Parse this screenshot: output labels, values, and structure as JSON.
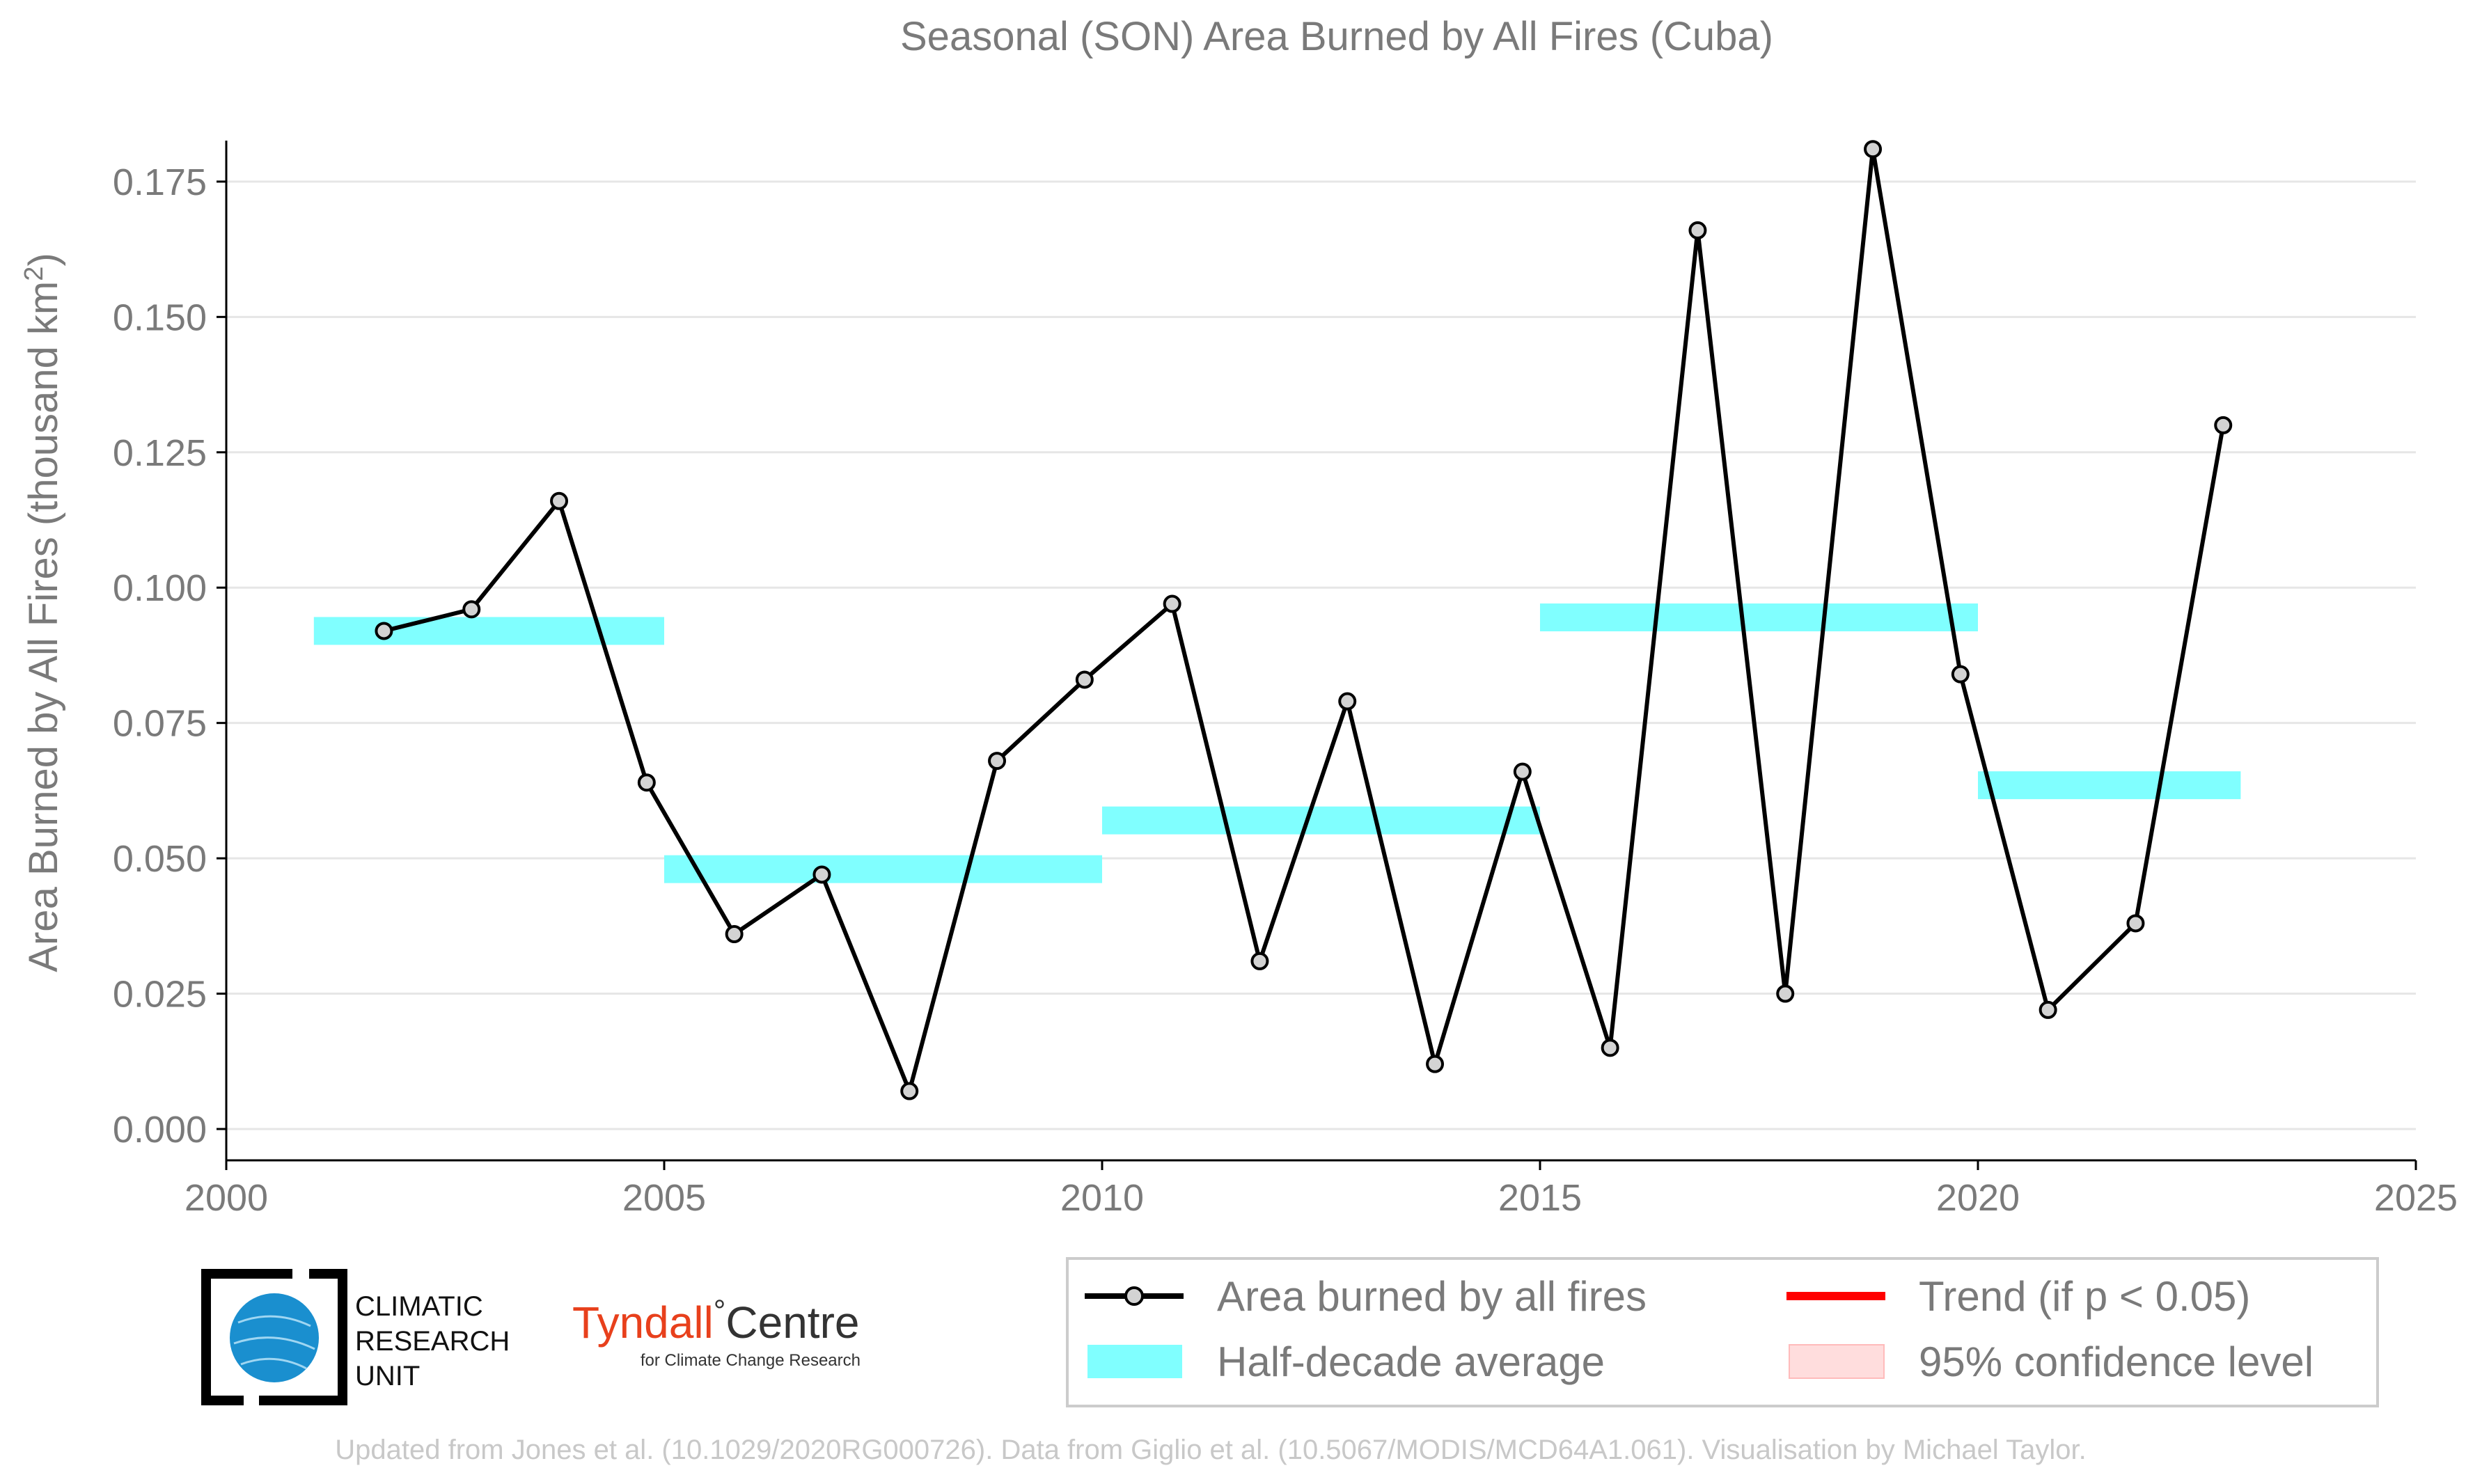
{
  "chart_data": {
    "type": "line",
    "title": "Seasonal (SON) Area Burned by All Fires (Cuba)",
    "ylabel_main": "Area Burned by All Fires (thousand km",
    "ylabel_sup": "2",
    "ylabel_close": ")",
    "xlabel": "",
    "xlim": [
      2000,
      2025
    ],
    "ylim": [
      0,
      0.175
    ],
    "x_ticks": [
      "2000",
      "2005",
      "2010",
      "2015",
      "2020",
      "2025"
    ],
    "y_ticks": [
      "0.000",
      "0.025",
      "0.050",
      "0.075",
      "0.100",
      "0.125",
      "0.150",
      "0.175"
    ],
    "grid": true,
    "series": [
      {
        "name": "Area burned by all fires",
        "color": "#000000",
        "x": [
          2001.8,
          2002.8,
          2003.8,
          2004.8,
          2005.8,
          2006.8,
          2007.8,
          2008.8,
          2009.8,
          2010.8,
          2011.8,
          2012.8,
          2013.8,
          2014.8,
          2015.8,
          2016.8,
          2017.8,
          2018.8,
          2019.8,
          2020.8,
          2021.8,
          2022.8
        ],
        "y": [
          0.092,
          0.096,
          0.116,
          0.064,
          0.036,
          0.047,
          0.007,
          0.068,
          0.083,
          0.097,
          0.031,
          0.079,
          0.012,
          0.066,
          0.015,
          0.166,
          0.025,
          0.181,
          0.084,
          0.022,
          0.038,
          0.13
        ]
      }
    ],
    "half_decade_averages": [
      {
        "x_start": 2001,
        "x_end": 2005,
        "value": 0.092
      },
      {
        "x_start": 2005,
        "x_end": 2010,
        "value": 0.048
      },
      {
        "x_start": 2010,
        "x_end": 2015,
        "value": 0.057
      },
      {
        "x_start": 2015,
        "x_end": 2020,
        "value": 0.0945
      },
      {
        "x_start": 2020,
        "x_end": 2023,
        "value": 0.0635
      }
    ],
    "half_decade_color": "#80ffff",
    "legend": {
      "placement": "bottom",
      "entries": [
        {
          "label": "Area burned by all fires"
        },
        {
          "label": "Trend (if p < 0.05)",
          "color": "#ff0000"
        },
        {
          "label": "Half-decade average"
        },
        {
          "label": "95% confidence level",
          "color": "#ffdddd"
        }
      ]
    }
  },
  "logos": {
    "cru": {
      "line1": "CLIMATIC",
      "line2": "RESEARCH",
      "line3": "UNIT"
    },
    "tyndall": {
      "name_a": "Tyndall",
      "degree": "°",
      "name_b": "Centre",
      "subtitle": "for Climate Change Research"
    }
  },
  "footer": "Updated from Jones et al. (10.1029/2020RG000726). Data from Giglio et al. (10.5067/MODIS/MCD64A1.061). Visualisation by Michael Taylor."
}
